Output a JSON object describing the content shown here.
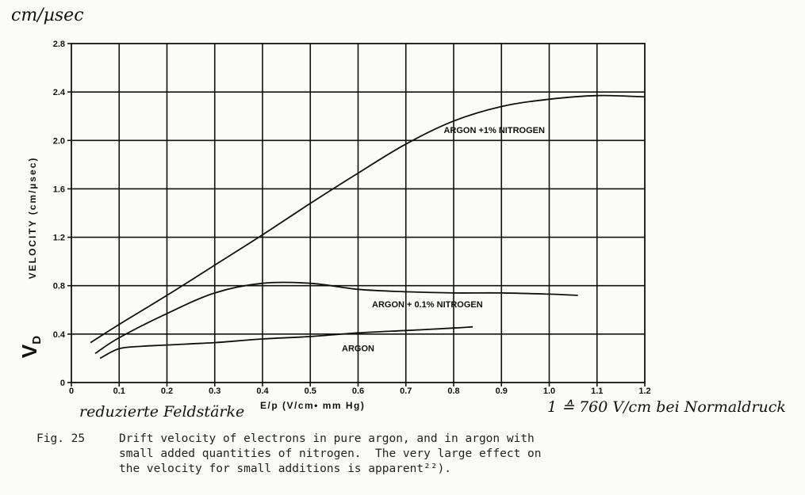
{
  "chart_data": {
    "type": "line",
    "y_unit_handwritten": "cm/µsec",
    "ylabel": "VELOCITY (cm/µsec)",
    "ylabel_symbol": "V",
    "ylabel_symbol_sub": "D",
    "xlabel": "E/p (V/cm• mm Hg)",
    "xlabel_handwritten": "reduzierte Feldstärke",
    "x_note_handwritten": "1 ≙ 760 V/cm bei Normaldruck",
    "xlim": [
      0,
      1.2
    ],
    "ylim": [
      0,
      2.8
    ],
    "x_ticks": [
      "0",
      "0.1",
      "0.2",
      "0.3",
      "0.4",
      "0.5",
      "0.6",
      "0.7",
      "0.8",
      "0.9",
      "1.0",
      "1.1",
      "1.2"
    ],
    "y_ticks": [
      {
        "value": 0,
        "label": "0"
      },
      {
        "value": 0.4,
        "label": "0.4"
      },
      {
        "value": 0.8,
        "label": "0.8"
      },
      {
        "value": 1.2,
        "label": "1.2"
      },
      {
        "value": 1.6,
        "label": "1.6"
      },
      {
        "value": 2.0,
        "label": "2.0"
      },
      {
        "value": 2.4,
        "label": "2.4"
      },
      {
        "value": 2.8,
        "label": "2.8"
      }
    ],
    "grid": true,
    "series": [
      {
        "name": "ARGON +1% NITROGEN",
        "points": [
          [
            0.04,
            0.33
          ],
          [
            0.1,
            0.48
          ],
          [
            0.2,
            0.72
          ],
          [
            0.3,
            0.97
          ],
          [
            0.4,
            1.22
          ],
          [
            0.5,
            1.48
          ],
          [
            0.6,
            1.73
          ],
          [
            0.7,
            1.97
          ],
          [
            0.8,
            2.16
          ],
          [
            0.9,
            2.28
          ],
          [
            1.0,
            2.34
          ],
          [
            1.1,
            2.37
          ],
          [
            1.2,
            2.36
          ]
        ],
        "label_at": [
          0.885,
          2.06
        ]
      },
      {
        "name": "ARGON + 0.1% NITROGEN",
        "points": [
          [
            0.05,
            0.24
          ],
          [
            0.1,
            0.37
          ],
          [
            0.2,
            0.57
          ],
          [
            0.3,
            0.74
          ],
          [
            0.4,
            0.82
          ],
          [
            0.5,
            0.82
          ],
          [
            0.6,
            0.77
          ],
          [
            0.7,
            0.75
          ],
          [
            0.8,
            0.74
          ],
          [
            0.9,
            0.74
          ],
          [
            1.0,
            0.73
          ],
          [
            1.06,
            0.72
          ]
        ],
        "label_at": [
          0.745,
          0.62
        ]
      },
      {
        "name": "ARGON",
        "points": [
          [
            0.06,
            0.2
          ],
          [
            0.1,
            0.28
          ],
          [
            0.15,
            0.3
          ],
          [
            0.2,
            0.31
          ],
          [
            0.3,
            0.33
          ],
          [
            0.4,
            0.36
          ],
          [
            0.5,
            0.38
          ],
          [
            0.6,
            0.41
          ],
          [
            0.7,
            0.43
          ],
          [
            0.8,
            0.45
          ],
          [
            0.84,
            0.46
          ]
        ],
        "label_at": [
          0.6,
          0.26
        ]
      }
    ]
  },
  "caption": {
    "label": "Fig. 25",
    "lines": [
      "Drift velocity of electrons in pure argon, and in argon with",
      "small added quantities of nitrogen.  The very large effect on",
      "the velocity for small additions is apparent²²)."
    ]
  }
}
